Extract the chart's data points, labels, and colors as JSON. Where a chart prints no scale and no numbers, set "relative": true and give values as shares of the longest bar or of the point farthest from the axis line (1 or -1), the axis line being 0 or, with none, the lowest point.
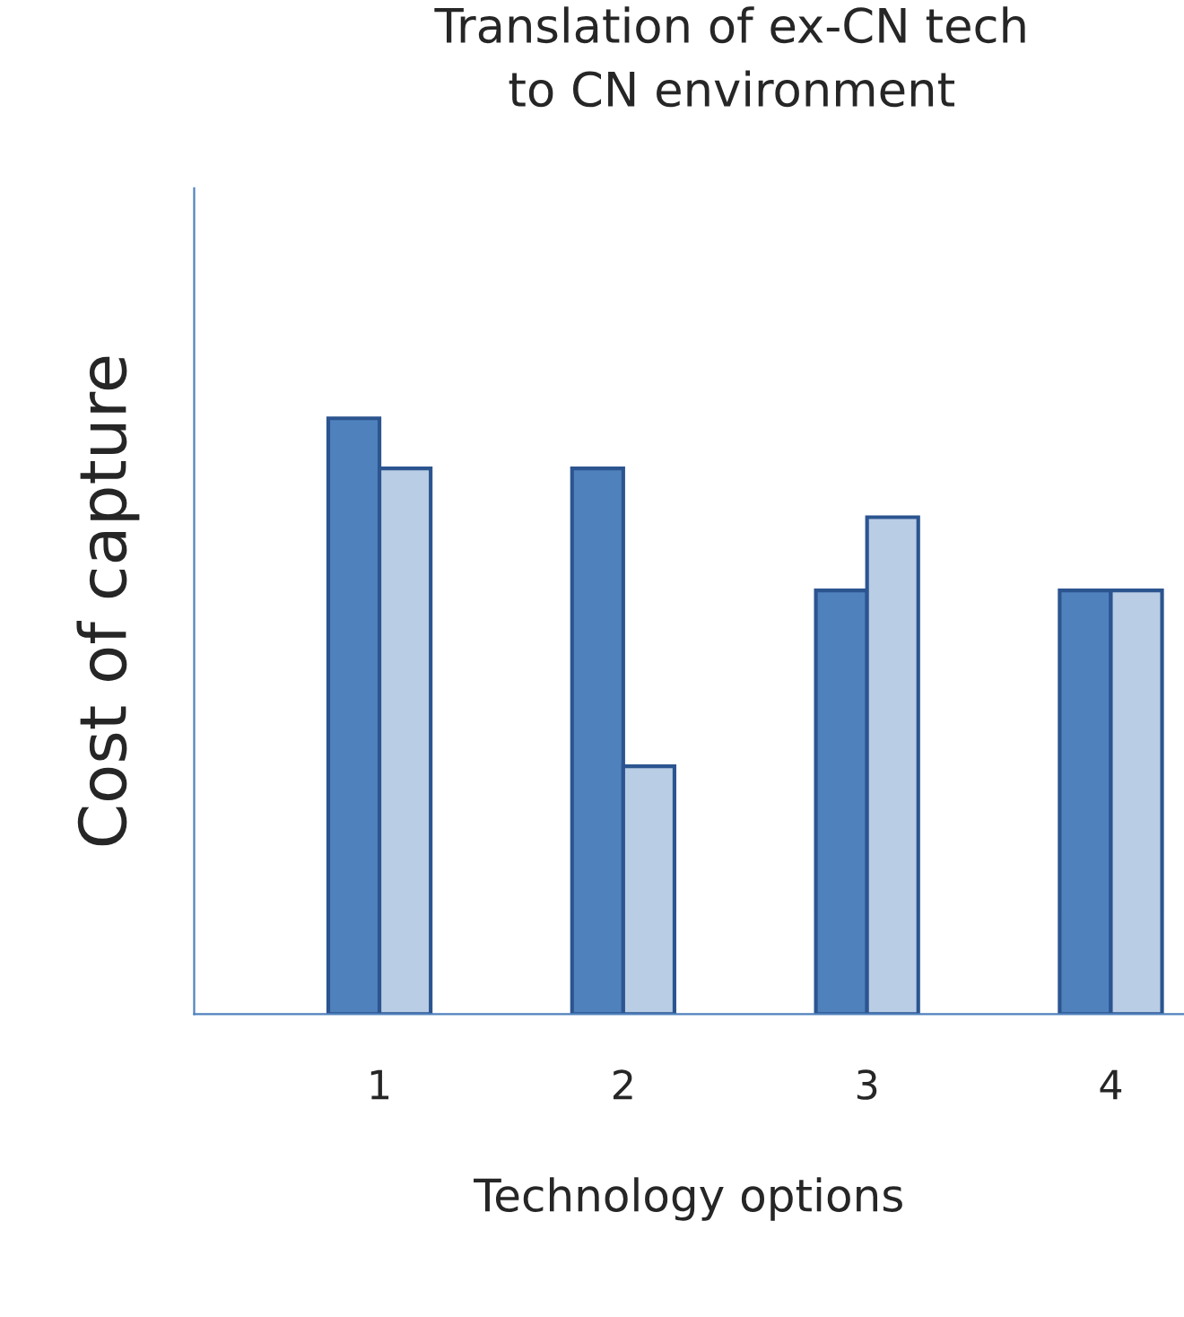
{
  "chart_data": {
    "type": "bar",
    "title": "Translation of ex-CN tech\nto CN environment",
    "xlabel": "Technology options",
    "ylabel": "Cost of capture",
    "categories": [
      "1",
      "2",
      "3",
      "4"
    ],
    "relative": true,
    "series": [
      {
        "color": "#4f81bd",
        "values": [
          1,
          0.916,
          0.711,
          0.711
        ]
      },
      {
        "color": "#b9cde5",
        "values": [
          0.916,
          0.416,
          0.834,
          0.711
        ]
      }
    ],
    "grid": false,
    "legend": false
  }
}
